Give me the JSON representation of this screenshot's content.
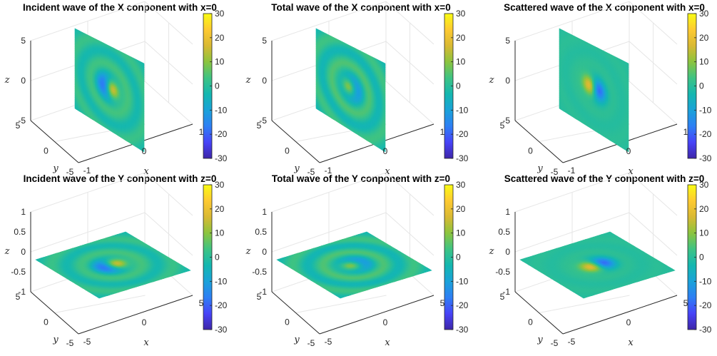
{
  "colors": {
    "colormap": "parula",
    "colormap_stops": [
      "#3e26a8",
      "#4743f8",
      "#2d7ff4",
      "#1aa2d9",
      "#14b7b0",
      "#3ec383",
      "#8cc43e",
      "#d9b933",
      "#feca31",
      "#f9fb14"
    ]
  },
  "chart_data": [
    {
      "type": "heatmap",
      "title": "Incident wave of the X conponent with x=0",
      "plane": "x=0",
      "pattern": "incident",
      "xlabel": "x",
      "ylabel": "y",
      "zlabel": "z",
      "xlim": [
        -1,
        1
      ],
      "ylim": [
        -5,
        5
      ],
      "zlim": [
        -5,
        5
      ],
      "xticks": [
        "-1",
        "0",
        "1"
      ],
      "yticks": [
        "-5",
        "0",
        "5"
      ],
      "zticks": [
        "-5",
        "0",
        "5"
      ],
      "clim": [
        -30,
        30
      ],
      "colorbar_ticks": [
        "30",
        "20",
        "10",
        "0",
        "-10",
        "-20",
        "-30"
      ],
      "grid": true
    },
    {
      "type": "heatmap",
      "title": "Total wave of the X conponent with x=0",
      "plane": "x=0",
      "pattern": "total",
      "xlabel": "x",
      "ylabel": "y",
      "zlabel": "z",
      "xlim": [
        -1,
        1
      ],
      "ylim": [
        -5,
        5
      ],
      "zlim": [
        -5,
        5
      ],
      "xticks": [
        "-1",
        "0",
        "1"
      ],
      "yticks": [
        "-5",
        "0",
        "5"
      ],
      "zticks": [
        "-5",
        "0",
        "5"
      ],
      "clim": [
        -30,
        30
      ],
      "colorbar_ticks": [
        "30",
        "20",
        "10",
        "0",
        "-10",
        "-20",
        "-30"
      ],
      "grid": true
    },
    {
      "type": "heatmap",
      "title": "Scattered wave of the X conponent with x=0",
      "plane": "x=0",
      "pattern": "scattered",
      "xlabel": "x",
      "ylabel": "y",
      "zlabel": "z",
      "xlim": [
        -1,
        1
      ],
      "ylim": [
        -5,
        5
      ],
      "zlim": [
        -5,
        5
      ],
      "xticks": [
        "-1",
        "0",
        "1"
      ],
      "yticks": [
        "-5",
        "0",
        "5"
      ],
      "zticks": [
        "-5",
        "0",
        "5"
      ],
      "clim": [
        -30,
        30
      ],
      "colorbar_ticks": [
        "30",
        "20",
        "10",
        "0",
        "-10",
        "-20",
        "-30"
      ],
      "grid": true
    },
    {
      "type": "heatmap",
      "title": "Incident wave of the Y conponent with z=0",
      "plane": "z=0",
      "pattern": "incident",
      "xlabel": "x",
      "ylabel": "y",
      "zlabel": "z",
      "xlim": [
        -5,
        5
      ],
      "ylim": [
        -5,
        5
      ],
      "zlim": [
        -1,
        1
      ],
      "xticks": [
        "-5",
        "0",
        "5"
      ],
      "yticks": [
        "-5",
        "0",
        "5"
      ],
      "zticks": [
        "-1",
        "-0.5",
        "0",
        "0.5",
        "1"
      ],
      "clim": [
        -30,
        30
      ],
      "colorbar_ticks": [
        "30",
        "20",
        "10",
        "0",
        "-10",
        "-20",
        "-30"
      ],
      "grid": true
    },
    {
      "type": "heatmap",
      "title": "Total wave of the Y conponent with z=0",
      "plane": "z=0",
      "pattern": "total",
      "xlabel": "x",
      "ylabel": "y",
      "zlabel": "z",
      "xlim": [
        -5,
        5
      ],
      "ylim": [
        -5,
        5
      ],
      "zlim": [
        -1,
        1
      ],
      "xticks": [
        "-5",
        "0",
        "5"
      ],
      "yticks": [
        "-5",
        "0",
        "5"
      ],
      "zticks": [
        "-1",
        "-0.5",
        "0",
        "0.5",
        "1"
      ],
      "clim": [
        -30,
        30
      ],
      "colorbar_ticks": [
        "30",
        "20",
        "10",
        "0",
        "-10",
        "-20",
        "-30"
      ],
      "grid": true
    },
    {
      "type": "heatmap",
      "title": "Scattered wave of the Y conponent with z=0",
      "plane": "z=0",
      "pattern": "scattered",
      "xlabel": "x",
      "ylabel": "y",
      "zlabel": "z",
      "xlim": [
        -5,
        5
      ],
      "ylim": [
        -5,
        5
      ],
      "zlim": [
        -1,
        1
      ],
      "xticks": [
        "-5",
        "0",
        "5"
      ],
      "yticks": [
        "-5",
        "0",
        "5"
      ],
      "zticks": [
        "-1",
        "-0.5",
        "0",
        "0.5",
        "1"
      ],
      "clim": [
        -30,
        30
      ],
      "colorbar_ticks": [
        "30",
        "20",
        "10",
        "0",
        "-10",
        "-20",
        "-30"
      ],
      "grid": true
    }
  ]
}
